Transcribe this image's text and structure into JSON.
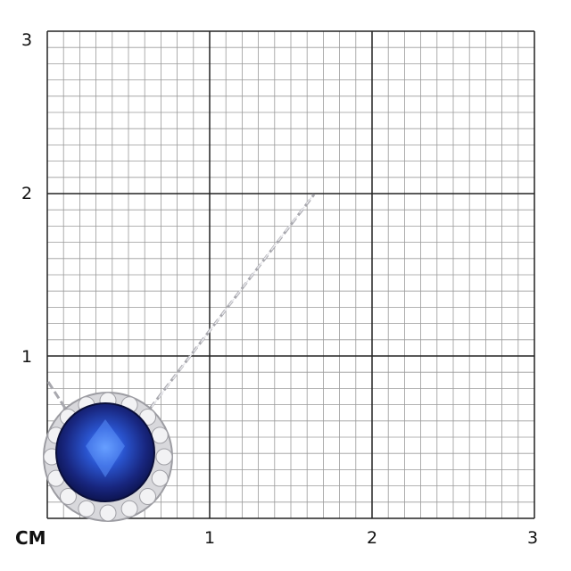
{
  "scale": {
    "unit_label": "CM",
    "x_ticks": [
      "1",
      "2",
      "3"
    ],
    "y_ticks": [
      "1",
      "2",
      "3"
    ],
    "range_cm": [
      0,
      3
    ],
    "minor_divisions_per_cm": 10
  },
  "product": {
    "type": "halo pendant necklace",
    "center_stone_color": "#1a2a8c",
    "metal_color": "#c8c8cc"
  },
  "colors": {
    "grid_minor": "#9a9a9a",
    "grid_major": "#222222"
  }
}
